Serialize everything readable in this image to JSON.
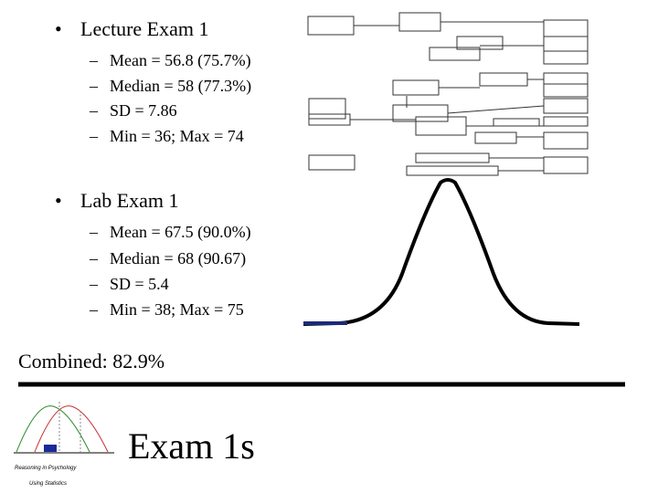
{
  "sections": [
    {
      "title": "Lecture Exam 1",
      "items": [
        "Mean = 56.8 (75.7%)",
        "Median = 58 (77.3%)",
        "SD = 7.86",
        "Min = 36; Max = 74"
      ]
    },
    {
      "title": "Lab Exam 1",
      "items": [
        "Mean = 67.5 (90.0%)",
        "Median = 68 (90.67)",
        "SD = 5.4",
        "Min = 38; Max = 75"
      ]
    }
  ],
  "combined": "Combined: 82.9%",
  "footer": {
    "title": "Exam 1s",
    "logo": {
      "line1": "Reasoning in Psychology",
      "line2": "Using Statistics"
    }
  }
}
